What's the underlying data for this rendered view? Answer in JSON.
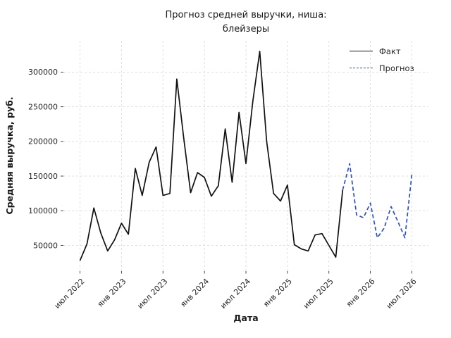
{
  "title": {
    "line1": "Прогноз средней выручки, ниша:",
    "line2": "блейзеры"
  },
  "axes": {
    "x_label": "Дата",
    "y_label": "Средняя выручка, руб."
  },
  "legend": {
    "fact_label": "Факт",
    "forecast_label": "Прогноз"
  },
  "colors": {
    "fact_line": "#111111",
    "forecast_line": "#2d50c8",
    "grid": "#dcdcdc",
    "tick_text": "#262626",
    "background": "#ffffff"
  },
  "chart_data": {
    "type": "line",
    "title": "Прогноз средней выручки, ниша: блейзеры",
    "xlabel": "Дата",
    "ylabel": "Средняя выручка, руб.",
    "x_unit": "month",
    "x_months": [
      "2022-07",
      "2022-08",
      "2022-09",
      "2022-10",
      "2022-11",
      "2022-12",
      "2023-01",
      "2023-02",
      "2023-03",
      "2023-04",
      "2023-05",
      "2023-06",
      "2023-07",
      "2023-08",
      "2023-09",
      "2023-10",
      "2023-11",
      "2023-12",
      "2024-01",
      "2024-02",
      "2024-03",
      "2024-04",
      "2024-05",
      "2024-06",
      "2024-07",
      "2024-08",
      "2024-09",
      "2024-10",
      "2024-11",
      "2024-12",
      "2025-01",
      "2025-02",
      "2025-03",
      "2025-04",
      "2025-05",
      "2025-06",
      "2025-07",
      "2025-08",
      "2025-09",
      "2025-10",
      "2025-11",
      "2025-12",
      "2026-01",
      "2026-02",
      "2026-03",
      "2026-04",
      "2026-05",
      "2026-06",
      "2026-07"
    ],
    "x_tick_indices": [
      0,
      6,
      12,
      18,
      24,
      30,
      36,
      42,
      48
    ],
    "x_tick_labels": [
      "июл 2022",
      "янв 2023",
      "июл 2023",
      "янв 2024",
      "июл 2024",
      "янв 2025",
      "июл 2025",
      "янв 2026",
      "июл 2026"
    ],
    "y_ticks": [
      50000,
      100000,
      150000,
      200000,
      250000,
      300000
    ],
    "ylim": [
      12900,
      345100
    ],
    "xlim_index": [
      -2.4,
      50.4
    ],
    "grid": true,
    "legend_position": "upper right",
    "series": [
      {
        "name": "Факт",
        "style": "solid",
        "color": "#111111",
        "start_index": 0,
        "values": [
          28000,
          52000,
          104000,
          68000,
          42000,
          58000,
          82000,
          66000,
          161000,
          122000,
          170000,
          192000,
          122000,
          125000,
          290000,
          205000,
          126000,
          155000,
          148000,
          121000,
          136000,
          218000,
          141000,
          242000,
          168000,
          258000,
          330000,
          200000,
          125000,
          114000,
          137000,
          51000,
          45000,
          42000,
          65000,
          67000,
          50000,
          33000,
          130000
        ]
      },
      {
        "name": "Прогноз",
        "style": "dashed",
        "color": "#2d50c8",
        "start_index": 38,
        "values": [
          130000,
          168000,
          94000,
          90000,
          111000,
          61000,
          75000,
          106000,
          84000,
          61000,
          153000
        ]
      }
    ]
  }
}
